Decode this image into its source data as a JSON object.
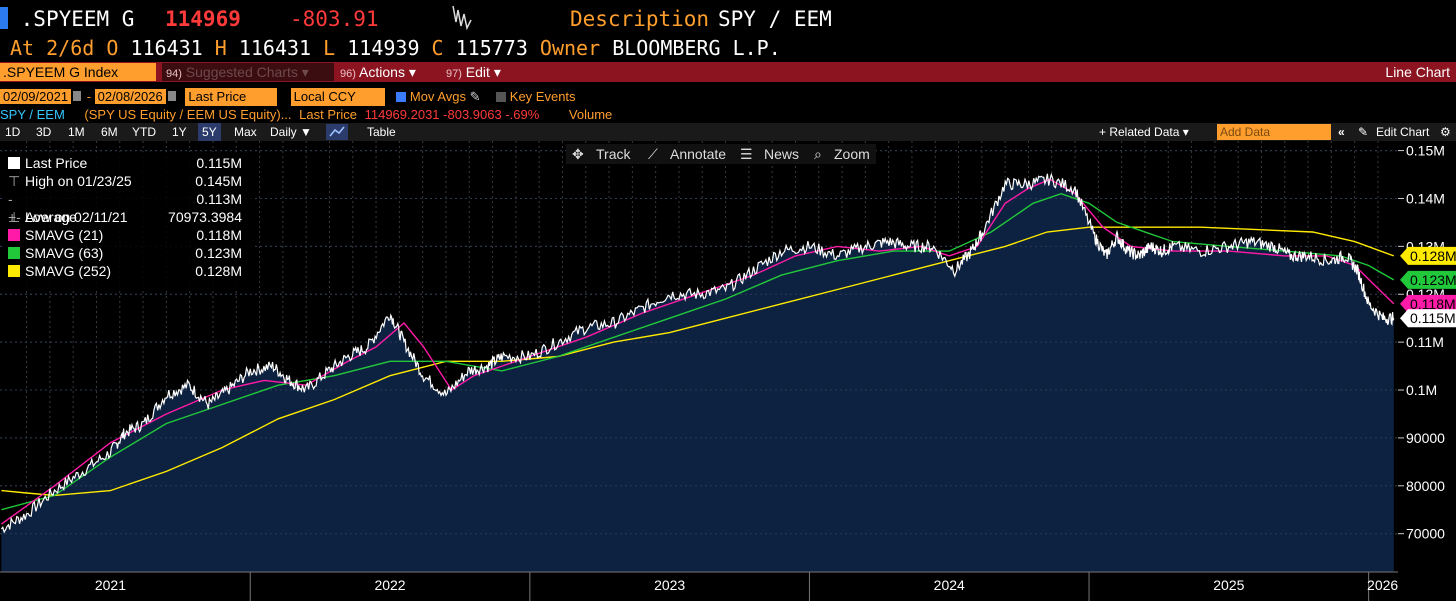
{
  "header": {
    "ticker": ".SPYEEM G",
    "last": "114969",
    "change": "-803.91",
    "description_label": "Description",
    "description": "SPY / EEM",
    "at_label": "At",
    "at_date": "2/6d",
    "open_label": "O",
    "open": "116431",
    "high_label": "H",
    "high": "116431",
    "low_label": "L",
    "low": "114939",
    "close_label": "C",
    "close": "115773",
    "owner_label": "Owner",
    "owner": "BLOOMBERG L.P."
  },
  "menubar": {
    "security": ".SPYEEM G Index",
    "suggested_num": "94)",
    "suggested": "Suggested Charts",
    "actions_num": "96)",
    "actions": "Actions",
    "edit_num": "97)",
    "edit": "Edit",
    "chart_type": "Line Chart",
    "dropdown_glyph": "▾"
  },
  "settings": {
    "start_date": "02/09/2021",
    "dash": "-",
    "end_date": "02/08/2026",
    "field": "Last Price",
    "currency": "Local CCY",
    "mov_avgs": "Mov Avgs",
    "key_events": "Key Events"
  },
  "legend_line": {
    "name": "SPY / EEM",
    "members": "(SPY US Equity /  EEM US Equity)...",
    "field": "Last Price",
    "values": "114969.2031 -803.9063 -.69%",
    "volume": "Volume"
  },
  "toolbar": {
    "periods": [
      "1D",
      "3D",
      "1M",
      "6M",
      "YTD",
      "1Y",
      "5Y",
      "Max"
    ],
    "selected": "5Y",
    "frequency": "Daily ▼",
    "table": "Table",
    "related": "+ Related Data ▾",
    "add_data": "Add Data",
    "edit_chart": "Edit Chart"
  },
  "chart_tools": {
    "track": "Track",
    "annotate": "Annotate",
    "news": "News",
    "zoom": "Zoom"
  },
  "legend_box": [
    {
      "label": "Last Price",
      "value": "0.115M",
      "color": "#ffffff"
    },
    {
      "label": "High on 01/23/25",
      "value": "0.145M",
      "color": ""
    },
    {
      "label": "Average",
      "value": "0.113M",
      "color": ""
    },
    {
      "label": "Low on 02/11/21",
      "value": "70973.3984",
      "color": ""
    },
    {
      "label": "SMAVG (21)",
      "value": "0.118M",
      "color": "#ff1aa8"
    },
    {
      "label": "SMAVG (63)",
      "value": "0.123M",
      "color": "#21c93a"
    },
    {
      "label": "SMAVG (252)",
      "value": "0.128M",
      "color": "#ffea00"
    }
  ],
  "colors": {
    "background": "#000000",
    "area_fill": "#0d2240",
    "price": "#ffffff",
    "sma21": "#ff1aa8",
    "sma63": "#21c93a",
    "sma252": "#ffea00",
    "grid": "#3a3a3a",
    "amber": "#ff9e2d"
  },
  "chart_data": {
    "type": "line",
    "title": "SPY / EEM",
    "x_range": [
      2021.105,
      2026.105
    ],
    "ylim": [
      62000,
      152000
    ],
    "y_ticks": [
      70000,
      80000,
      90000,
      100000,
      110000,
      120000,
      130000,
      140000,
      150000
    ],
    "y_tick_labels": [
      "70000",
      "80000",
      "90000",
      "0.1M",
      "0.11M",
      "0.12M",
      "0.13M",
      "0.14M",
      "0.15M"
    ],
    "x_tick_labels": [
      {
        "label": "2021",
        "x": 2021.5
      },
      {
        "label": "2022",
        "x": 2022.5
      },
      {
        "label": "2023",
        "x": 2023.5
      },
      {
        "label": "2024",
        "x": 2024.5
      },
      {
        "label": "2025",
        "x": 2025.5
      },
      {
        "label": "2026",
        "x": 2026.05
      }
    ],
    "year_separators": [
      2022.0,
      2023.0,
      2024.0,
      2025.0,
      2026.0
    ],
    "series": [
      {
        "name": "Last Price",
        "x": [
          2021.11,
          2021.2,
          2021.3,
          2021.4,
          2021.5,
          2021.55,
          2021.62,
          2021.7,
          2021.78,
          2021.85,
          2021.92,
          2022.0,
          2022.08,
          2022.14,
          2022.2,
          2022.28,
          2022.35,
          2022.42,
          2022.5,
          2022.55,
          2022.62,
          2022.7,
          2022.78,
          2022.85,
          2022.9,
          2023.0,
          2023.1,
          2023.2,
          2023.3,
          2023.4,
          2023.5,
          2023.6,
          2023.7,
          2023.8,
          2023.9,
          2024.0,
          2024.1,
          2024.2,
          2024.28,
          2024.36,
          2024.44,
          2024.52,
          2024.58,
          2024.62,
          2024.7,
          2024.78,
          2024.86,
          2024.95,
          2025.02,
          2025.06,
          2025.1,
          2025.14,
          2025.18,
          2025.22,
          2025.26,
          2025.3,
          2025.4,
          2025.5,
          2025.58,
          2025.66,
          2025.72,
          2025.78,
          2025.86,
          2025.92,
          2025.96,
          2026.0,
          2026.05,
          2026.09
        ],
        "values": [
          71000,
          74000,
          79000,
          83000,
          87000,
          91000,
          93000,
          99000,
          101000,
          97000,
          100000,
          104000,
          105000,
          102000,
          100000,
          104000,
          107000,
          109000,
          116000,
          110000,
          103000,
          99000,
          104000,
          105000,
          107000,
          107000,
          110000,
          113000,
          114000,
          117000,
          120000,
          120000,
          121000,
          125000,
          129000,
          130000,
          128000,
          130000,
          131000,
          130000,
          130000,
          125000,
          129000,
          133000,
          143000,
          143000,
          144000,
          142000,
          132000,
          128000,
          132000,
          129000,
          128000,
          130000,
          129000,
          130000,
          129000,
          130000,
          131000,
          130000,
          128000,
          128000,
          127000,
          128000,
          125000,
          118000,
          115000,
          115000
        ]
      },
      {
        "name": "SMAVG (21)",
        "x": [
          2021.11,
          2021.3,
          2021.5,
          2021.7,
          2021.9,
          2022.05,
          2022.2,
          2022.35,
          2022.45,
          2022.55,
          2022.62,
          2022.72,
          2022.8,
          2022.9,
          2023.0,
          2023.2,
          2023.4,
          2023.6,
          2023.8,
          2023.95,
          2024.1,
          2024.25,
          2024.4,
          2024.5,
          2024.6,
          2024.7,
          2024.78,
          2024.86,
          2024.95,
          2025.05,
          2025.15,
          2025.3,
          2025.5,
          2025.7,
          2025.85,
          2025.95,
          2026.02,
          2026.09
        ],
        "values": [
          72000,
          80000,
          89000,
          95000,
          100000,
          102000,
          101000,
          106000,
          109000,
          114000,
          109000,
          100000,
          103000,
          105000,
          107000,
          111000,
          116000,
          120000,
          124000,
          128000,
          130000,
          129000,
          130000,
          128000,
          130000,
          139000,
          142000,
          144000,
          141000,
          134000,
          130000,
          129000,
          129000,
          128000,
          128000,
          126000,
          122000,
          118000
        ]
      },
      {
        "name": "SMAVG (63)",
        "x": [
          2021.11,
          2021.3,
          2021.5,
          2021.7,
          2021.9,
          2022.1,
          2022.3,
          2022.5,
          2022.7,
          2022.9,
          2023.1,
          2023.3,
          2023.5,
          2023.7,
          2023.9,
          2024.1,
          2024.3,
          2024.5,
          2024.65,
          2024.8,
          2024.9,
          2025.0,
          2025.1,
          2025.3,
          2025.5,
          2025.7,
          2025.9,
          2026.0,
          2026.09
        ],
        "values": [
          75000,
          78000,
          86000,
          93000,
          97000,
          101000,
          103000,
          106000,
          106000,
          104000,
          107000,
          111000,
          115000,
          119000,
          124000,
          127000,
          129000,
          129000,
          133000,
          139000,
          141000,
          139000,
          135000,
          131000,
          130000,
          129000,
          128000,
          126000,
          123000
        ]
      },
      {
        "name": "SMAVG (252)",
        "x": [
          2021.11,
          2021.2,
          2021.3,
          2021.5,
          2021.7,
          2021.9,
          2022.1,
          2022.3,
          2022.5,
          2022.7,
          2022.9,
          2023.1,
          2023.3,
          2023.5,
          2023.7,
          2023.9,
          2024.1,
          2024.3,
          2024.5,
          2024.7,
          2024.85,
          2025.0,
          2025.2,
          2025.4,
          2025.6,
          2025.8,
          2025.95,
          2026.09
        ],
        "values": [
          79000,
          78500,
          78000,
          79000,
          83000,
          88000,
          94000,
          98000,
          103000,
          106000,
          106000,
          107000,
          110000,
          112000,
          115000,
          118000,
          121000,
          124000,
          127000,
          130000,
          133000,
          134000,
          134000,
          134000,
          133500,
          133000,
          131000,
          128000
        ]
      }
    ],
    "last_value_tags": [
      {
        "label": "0.128M",
        "value": 128000,
        "bg": "#ffea00",
        "fg": "#000000"
      },
      {
        "label": "0.123M",
        "value": 123000,
        "bg": "#21c93a",
        "fg": "#000000"
      },
      {
        "label": "0.118M",
        "value": 118000,
        "bg": "#ff1aa8",
        "fg": "#000000"
      },
      {
        "label": "0.115M",
        "value": 115000,
        "bg": "#ffffff",
        "fg": "#000000"
      }
    ]
  }
}
